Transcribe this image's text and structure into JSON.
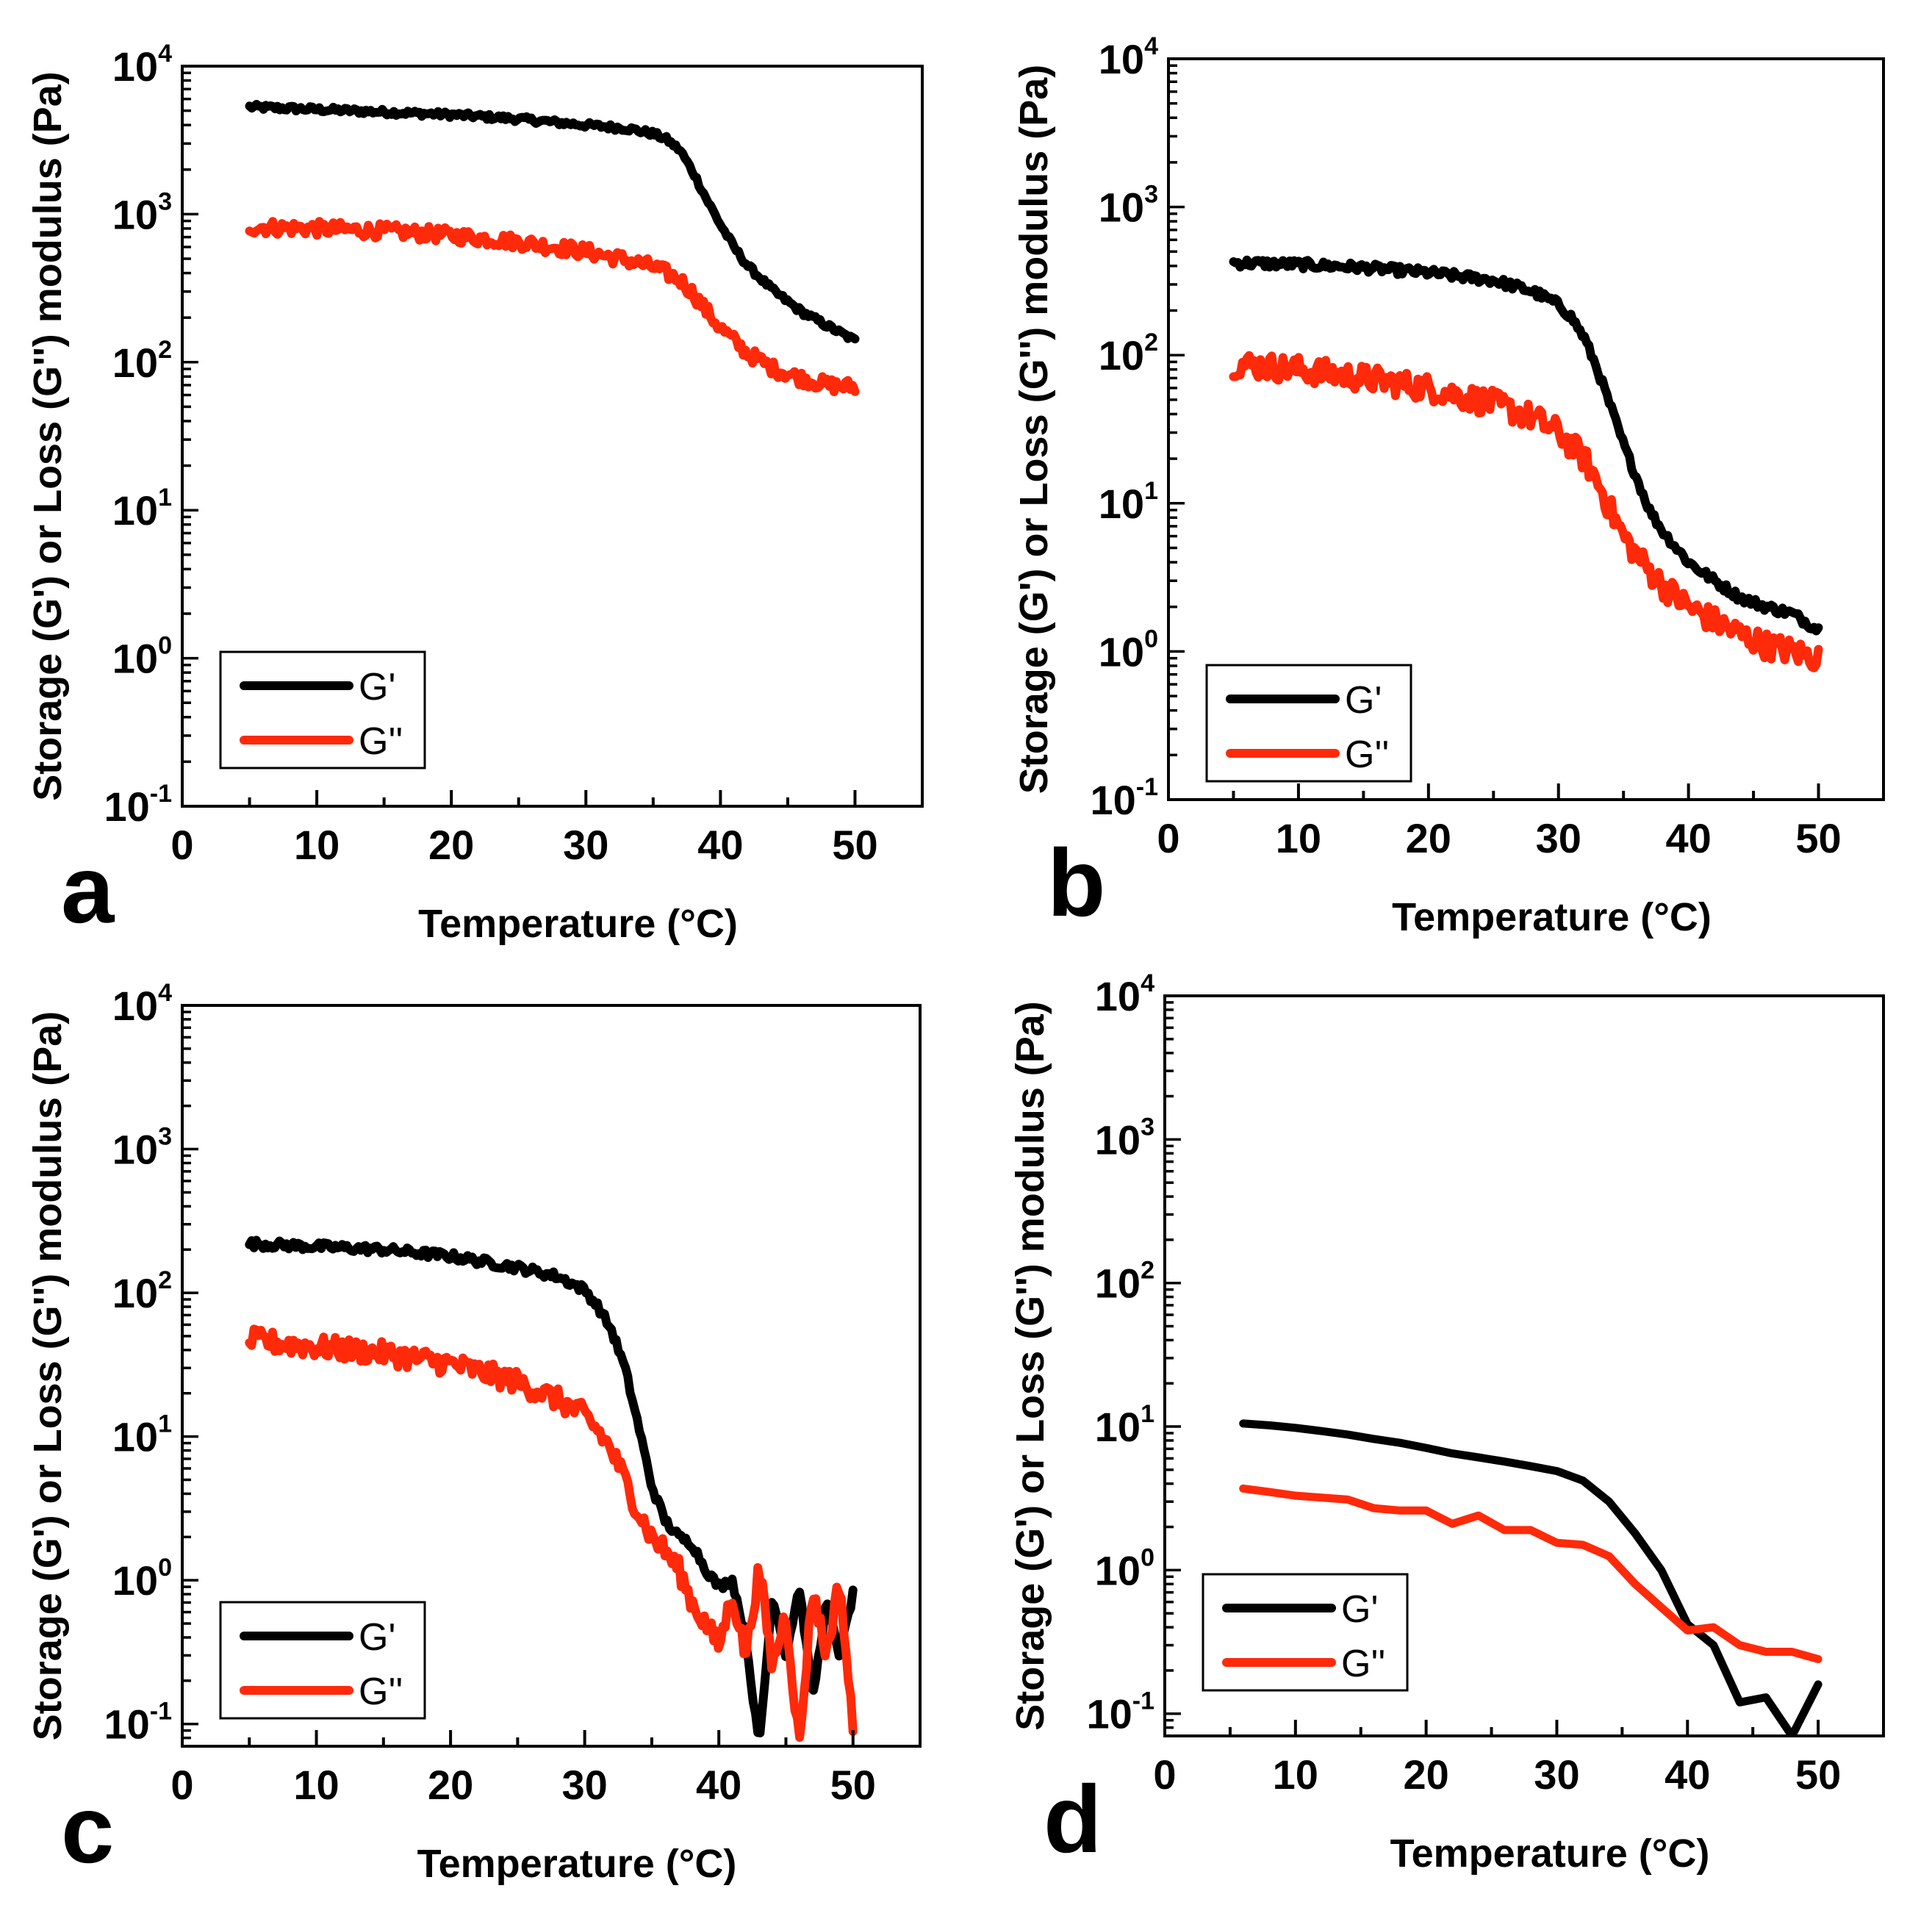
{
  "colors": {
    "g_prime": "#000000",
    "g_double_prime": "#ff2a0a",
    "axes": "#000000",
    "background": "#ffffff"
  },
  "chart_data": [
    {
      "panel": "a",
      "type": "line",
      "xlabel": "Temperature (°C)",
      "ylabel": "Storage (G') or Loss (G'') modulus (Pa)",
      "xlim": [
        0,
        55
      ],
      "ylim": [
        0.1,
        10000
      ],
      "yscale": "log",
      "xticks": [
        0,
        10,
        20,
        30,
        40,
        50
      ],
      "yticks": [
        "10-1",
        "100",
        "101",
        "102",
        "103",
        "104"
      ],
      "legend": [
        "G'",
        "G''"
      ],
      "legend_position": "bottom-left",
      "noise": [
        0.02,
        0.05
      ],
      "series": [
        {
          "name": "G'",
          "x": [
            5,
            10,
            15,
            20,
            25,
            30,
            33,
            35,
            36,
            37,
            38,
            39,
            40,
            41,
            42,
            44,
            46,
            48,
            50
          ],
          "y": [
            5300,
            5100,
            4900,
            4700,
            4400,
            4000,
            3800,
            3500,
            3200,
            2700,
            1900,
            1250,
            850,
            600,
            450,
            300,
            220,
            175,
            140
          ]
        },
        {
          "name": "G''",
          "x": [
            5,
            10,
            15,
            20,
            25,
            30,
            33,
            35,
            36,
            37,
            38,
            39,
            40,
            41,
            42,
            44,
            46,
            48,
            50
          ],
          "y": [
            820,
            800,
            770,
            720,
            650,
            560,
            490,
            440,
            400,
            360,
            290,
            220,
            170,
            140,
            115,
            90,
            78,
            70,
            68
          ]
        }
      ]
    },
    {
      "panel": "b",
      "type": "line",
      "xlabel": "Temperature (°C)",
      "ylabel": "Storage (G') or Loss (G'') modulus (Pa)",
      "xlim": [
        0,
        55
      ],
      "ylim": [
        0.1,
        10000
      ],
      "yscale": "log",
      "xticks": [
        0,
        10,
        20,
        30,
        40,
        50
      ],
      "yticks": [
        "10-1",
        "100",
        "101",
        "102",
        "103",
        "104"
      ],
      "legend": [
        "G'",
        "G''"
      ],
      "legend_position": "bottom-left",
      "noise": [
        0.03,
        0.09
      ],
      "series": [
        {
          "name": "G'",
          "x": [
            5,
            10,
            15,
            20,
            25,
            28,
            30,
            31,
            32,
            33,
            34,
            35,
            36,
            37,
            38,
            40,
            42,
            44,
            46,
            48,
            50
          ],
          "y": [
            420,
            410,
            390,
            360,
            320,
            270,
            220,
            180,
            130,
            80,
            45,
            25,
            15,
            9,
            6.5,
            4.0,
            3.0,
            2.3,
            2.0,
            1.8,
            1.4
          ]
        },
        {
          "name": "G''",
          "x": [
            5,
            10,
            15,
            20,
            25,
            28,
            30,
            32,
            33,
            34,
            35,
            36,
            37,
            38,
            40,
            42,
            44,
            46,
            48,
            50
          ],
          "y": [
            88,
            80,
            70,
            60,
            47,
            38,
            30,
            20,
            14,
            9,
            6,
            4.5,
            3.5,
            2.8,
            2.0,
            1.6,
            1.3,
            1.1,
            1.0,
            0.9
          ]
        }
      ]
    },
    {
      "panel": "c",
      "type": "line",
      "xlabel": "Temperature (°C)",
      "ylabel": "Storage (G') or Loss (G'') modulus (Pa)",
      "xlim": [
        0,
        55
      ],
      "ylim": [
        0.07,
        10000
      ],
      "yscale": "log",
      "xticks": [
        0,
        10,
        20,
        30,
        40,
        50
      ],
      "yticks": [
        "10-1",
        "100",
        "101",
        "102",
        "103",
        "104"
      ],
      "legend": [
        "G'",
        "G''"
      ],
      "legend_position": "bottom-left",
      "noise": [
        0.03,
        0.08
      ],
      "series": [
        {
          "name": "G'",
          "x": [
            5,
            10,
            15,
            20,
            25,
            28,
            30,
            31,
            32,
            33,
            34,
            35,
            36,
            37,
            38,
            39,
            40,
            41,
            42,
            43,
            44,
            45,
            46,
            47,
            48,
            49,
            50
          ],
          "y": [
            220,
            210,
            200,
            180,
            150,
            130,
            105,
            80,
            55,
            30,
            12,
            4.5,
            2.6,
            2.0,
            1.8,
            1.2,
            0.9,
            1.0,
            0.4,
            0.07,
            0.8,
            0.3,
            0.9,
            0.15,
            0.7,
            0.3,
            0.8
          ]
        },
        {
          "name": "G''",
          "x": [
            5,
            10,
            15,
            20,
            25,
            28,
            30,
            31,
            32,
            33,
            34,
            35,
            36,
            37,
            38,
            39,
            40,
            41,
            42,
            43,
            44,
            45,
            46,
            47,
            48,
            49,
            50
          ],
          "y": [
            47,
            42,
            38,
            32,
            24,
            18,
            14,
            11,
            8,
            5,
            3,
            2.0,
            1.6,
            1.2,
            0.7,
            0.5,
            0.35,
            0.8,
            0.3,
            1.2,
            0.25,
            0.6,
            0.07,
            0.9,
            0.3,
            1.0,
            0.09
          ]
        }
      ]
    },
    {
      "panel": "d",
      "type": "line",
      "xlabel": "Temperature (°C)",
      "ylabel": "Storage (G') or Loss (G'') modulus (Pa)",
      "xlim": [
        0,
        55
      ],
      "ylim": [
        0.07,
        10000
      ],
      "yscale": "log",
      "xticks": [
        0,
        10,
        20,
        30,
        40,
        50
      ],
      "yticks": [
        "10-1",
        "100",
        "101",
        "102",
        "103",
        "104"
      ],
      "legend": [
        "G'",
        "G''"
      ],
      "legend_position": "bottom-left",
      "noise": [
        0,
        0
      ],
      "series": [
        {
          "name": "G'",
          "x": [
            6,
            8,
            10,
            12,
            14,
            16,
            18,
            20,
            22,
            24,
            26,
            28,
            30,
            32,
            34,
            36,
            38,
            40,
            42,
            44,
            46,
            48,
            50
          ],
          "y": [
            10.5,
            10.2,
            9.8,
            9.3,
            8.8,
            8.2,
            7.7,
            7.1,
            6.5,
            6.1,
            5.7,
            5.3,
            4.9,
            4.2,
            3.0,
            1.8,
            1.0,
            0.42,
            0.3,
            0.12,
            0.13,
            0.07,
            0.16
          ]
        },
        {
          "name": "G''",
          "x": [
            6,
            8,
            10,
            12,
            14,
            16,
            18,
            20,
            22,
            24,
            26,
            28,
            30,
            32,
            34,
            36,
            38,
            40,
            42,
            44,
            46,
            48,
            50
          ],
          "y": [
            3.7,
            3.5,
            3.3,
            3.2,
            3.1,
            2.7,
            2.6,
            2.6,
            2.1,
            2.4,
            1.9,
            1.9,
            1.55,
            1.5,
            1.25,
            0.8,
            0.55,
            0.38,
            0.4,
            0.3,
            0.27,
            0.27,
            0.24
          ]
        }
      ]
    }
  ]
}
